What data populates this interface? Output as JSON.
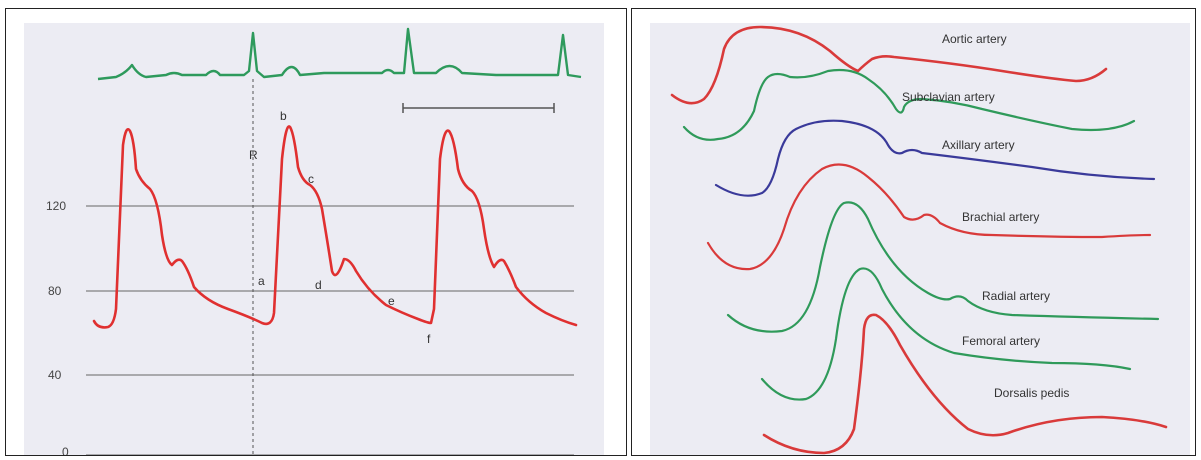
{
  "left_panel": {
    "y_ticks": [
      "120",
      "80",
      "40",
      "0"
    ],
    "point_labels": {
      "R": "R",
      "a": "a",
      "b": "b",
      "c": "c",
      "d": "d",
      "e": "e",
      "f": "f"
    }
  },
  "right_panel": {
    "waveforms": [
      {
        "label": "Aortic artery",
        "color": "#d93a3a"
      },
      {
        "label": "Subclavian artery",
        "color": "#2f9a5a"
      },
      {
        "label": "Axillary artery",
        "color": "#3a3a9a"
      },
      {
        "label": "Brachial artery",
        "color": "#d93a3a"
      },
      {
        "label": "Radial artery",
        "color": "#2f9a5a"
      },
      {
        "label": "Femoral artery",
        "color": "#2f9a5a"
      },
      {
        "label": "Dorsalis pedis",
        "color": "#d93a3a"
      }
    ]
  },
  "colors": {
    "background_panel": "#ececf3",
    "pressure_trace": "#e03030",
    "ecg_trace": "#2e9a5c",
    "grid": "#666666",
    "text": "#333333"
  }
}
